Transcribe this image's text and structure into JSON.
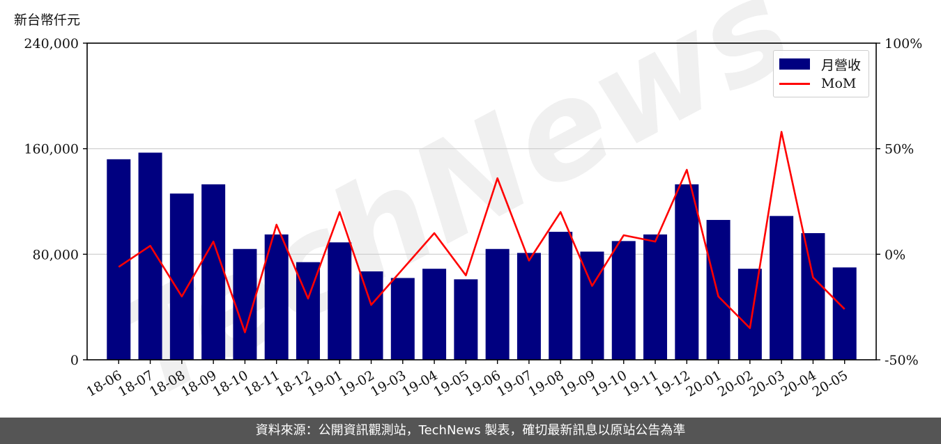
{
  "unit_label": "新台幣仟元",
  "footer_text": "資料來源：公開資訊觀測站，TechNews 製表，確切最新訊息以原站公告為準",
  "watermark": "TechNews",
  "colors": {
    "bar": "#000080",
    "line": "#ff0000",
    "footer_bg": "#555555",
    "grid": "#cccccc"
  },
  "legend": {
    "bar_label": "月營收",
    "line_label": "MoM",
    "placement": "top-right"
  },
  "chart_data": {
    "type": "bar",
    "categories": [
      "18-06",
      "18-07",
      "18-08",
      "18-09",
      "18-10",
      "18-11",
      "18-12",
      "19-01",
      "19-02",
      "19-03",
      "19-04",
      "19-05",
      "19-06",
      "19-07",
      "19-08",
      "19-09",
      "19-10",
      "19-11",
      "19-12",
      "20-01",
      "20-02",
      "20-03",
      "20-04",
      "20-05"
    ],
    "series": [
      {
        "name": "月營收",
        "type": "bar",
        "axis": "left",
        "values": [
          152000,
          157000,
          126000,
          133000,
          84000,
          95000,
          74000,
          89000,
          67000,
          62000,
          69000,
          61000,
          84000,
          81000,
          97000,
          82000,
          90000,
          95000,
          133000,
          106000,
          69000,
          109000,
          96000,
          70000
        ]
      },
      {
        "name": "MoM",
        "type": "line",
        "axis": "right",
        "values": [
          -6,
          4,
          -20,
          6,
          -37,
          14,
          -21,
          20,
          -24,
          -7,
          10,
          -10,
          36,
          -3,
          20,
          -15,
          9,
          6,
          40,
          -20,
          -35,
          58,
          -11,
          -26
        ]
      }
    ],
    "ylim_left": [
      0,
      240000
    ],
    "yticks_left": [
      "0",
      "80,000",
      "160,000",
      "240,000"
    ],
    "ylim_right": [
      -50,
      100
    ],
    "yticks_right": [
      "-50%",
      "0%",
      "50%",
      "100%"
    ],
    "grid": "horizontal"
  }
}
